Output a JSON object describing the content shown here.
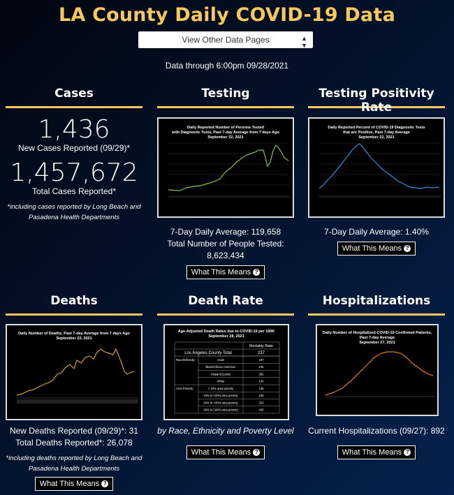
{
  "title": "LA County Daily COVID-19 Data",
  "dropdown": {
    "label": "View Other Data Pages"
  },
  "as_of": "Data through 6:00pm 09/28/2021",
  "help_button": "What This Means",
  "cases": {
    "heading": "Cases",
    "new_value": "1,436",
    "new_label": "New Cases Reported (09/29)*",
    "total_value": "1,457,672",
    "total_label": "Total Cases Reported*",
    "note": "*including cases reported by Long Beach and Pasadena Health Departments"
  },
  "testing": {
    "heading": "Testing",
    "chart_title_1": "Daily Reported Number of Persons Tested",
    "chart_title_2": "with Diagnostic Tests, Past 7-day Average from 7 days Ago",
    "chart_title_3": "September 22, 2021",
    "avg": "7-Day Daily Average: 119,658",
    "total": "Total Number of People Tested: 8,623,434"
  },
  "positivity": {
    "heading": "Testing Positivity Rate",
    "chart_title_1": "Daily Reported Percent of COVID-19 Diagnostic Tests",
    "chart_title_2": "that are Positive, Past 7-day Average",
    "chart_title_3": "September 22, 2021",
    "avg": "7-Day Daily Average: 1.40%"
  },
  "deaths": {
    "heading": "Deaths",
    "chart_title_1": "Daily Number of Deaths, Past 7-day Average from 7 days Ago",
    "chart_title_2": "September 22, 2021",
    "new": "New Deaths Reported (09/29)*: 31",
    "total": "Total Deaths Reported*: 26,078",
    "note": "*including deaths reported by Long Beach and Pasadena Health Departments"
  },
  "death_rate": {
    "heading": "Death Rate",
    "table_title_1": "Age-Adjusted Death Rates due to COVID-19 per 100K",
    "table_title_2": "September 28, 2021",
    "col_header": "Mortality Rate",
    "total_label": "Los Angeles County Total",
    "total_value": "237",
    "rows": [
      {
        "group": "Race/Ethnicity",
        "label": "Asian",
        "value": "187"
      },
      {
        "group": "",
        "label": "Black/African American",
        "value": "245"
      },
      {
        "group": "",
        "label": "Hispanic/Latino",
        "value": "382"
      },
      {
        "group": "",
        "label": "White",
        "value": "134"
      },
      {
        "group": "Area Poverty",
        "label": "< 10% area poverty",
        "value": "136"
      },
      {
        "group": "",
        "label": "10% to <20% area poverty",
        "value": "245"
      },
      {
        "group": "",
        "label": "20% to <30% area poverty",
        "value": "323"
      },
      {
        "group": "",
        "label": "30% to 100% area poverty",
        "value": "430"
      }
    ],
    "caption": "by Race, Ethnicity and Poverty Level"
  },
  "hospitalizations": {
    "heading": "Hospitalizations",
    "chart_title_1": "Daily Number of Hospitalized COVID-19 Confirmed Patients,",
    "chart_title_2": "Past 7-day Average",
    "chart_title_3": "September 27, 2021",
    "current": "Current Hospitalizations (09/27): 892"
  },
  "colors": {
    "accent": "#f6c85f",
    "testing_line": "#8cbf3f",
    "positivity_line": "#2f8fd8",
    "deaths_line": "#c9a227",
    "hosp_line": "#e07a2a"
  }
}
